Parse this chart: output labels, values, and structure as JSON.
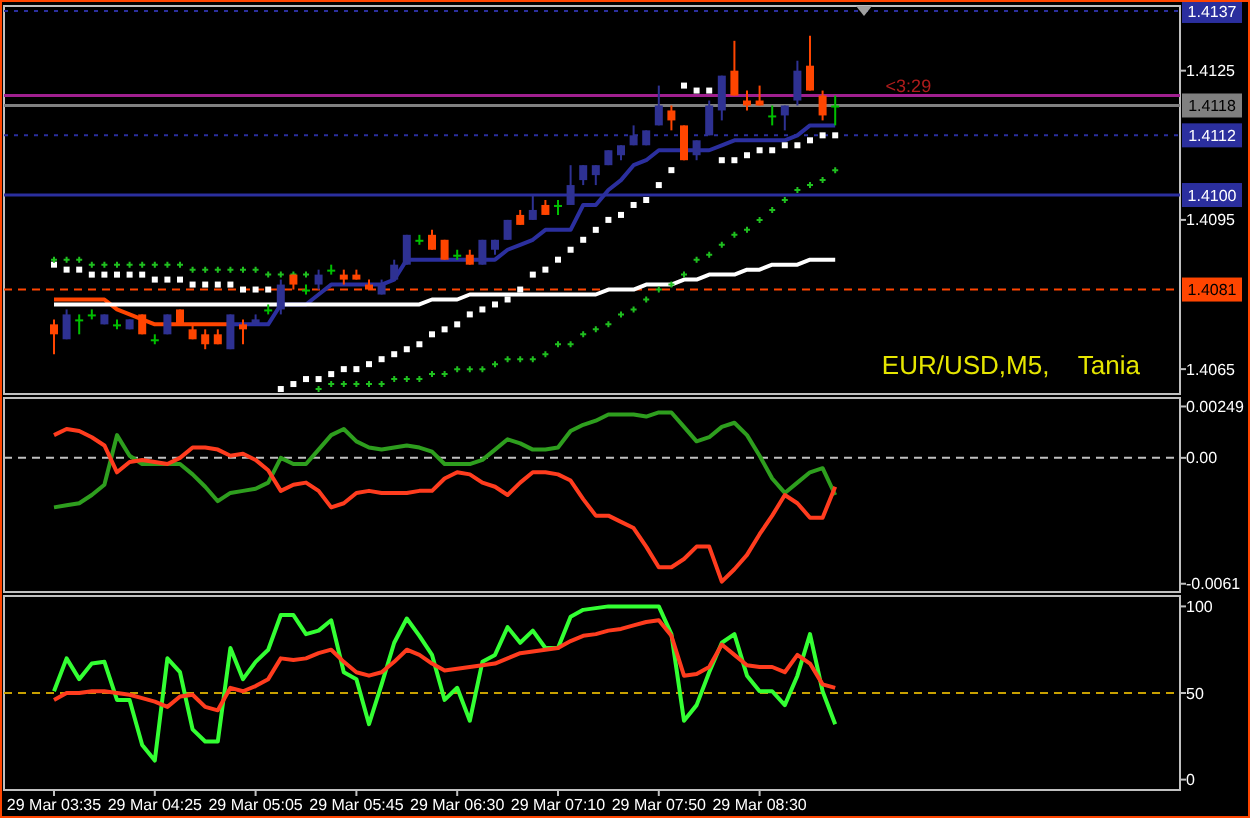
{
  "chart_data": [
    {
      "type": "candlestick",
      "title": "EUR/USD,M5,    Tania",
      "tick_labels": "y",
      "categories": [
        null,
        null,
        null,
        null,
        null,
        null,
        null,
        null,
        null,
        null,
        null,
        null,
        null,
        null,
        null,
        null,
        null,
        null,
        null,
        null,
        null,
        null,
        null,
        null,
        null,
        null,
        null,
        null,
        null,
        null,
        null,
        null,
        null,
        null,
        null,
        null,
        null,
        null,
        null,
        null,
        null,
        null,
        null,
        null,
        null,
        null,
        null,
        null,
        null,
        null,
        null,
        null,
        null,
        null,
        null,
        null,
        null,
        null,
        null,
        null,
        null,
        null,
        null
      ],
      "ohlc": [
        [
          1.4074,
          1.4075,
          1.4068,
          1.4072
        ],
        [
          1.4071,
          1.4077,
          1.4071,
          1.4076
        ],
        [
          1.4075,
          1.4076,
          1.4072,
          1.4075
        ],
        [
          1.4076,
          1.4077,
          1.4075,
          1.4076
        ],
        [
          1.4074,
          1.4076,
          1.4074,
          1.4076
        ],
        [
          1.4074,
          1.4075,
          1.4073,
          1.4074
        ],
        [
          1.4073,
          1.4075,
          1.4073,
          1.4075
        ],
        [
          1.4076,
          1.4076,
          1.4072,
          1.4072
        ],
        [
          1.4071,
          1.4072,
          1.407,
          1.4071
        ],
        [
          1.4072,
          1.4076,
          1.4072,
          1.4076
        ],
        [
          1.4077,
          1.4077,
          1.4074,
          1.4074
        ],
        [
          1.4073,
          1.4074,
          1.4071,
          1.4071
        ],
        [
          1.4072,
          1.4073,
          1.4069,
          1.407
        ],
        [
          1.4072,
          1.4073,
          1.407,
          1.407
        ],
        [
          1.4069,
          1.4076,
          1.4069,
          1.4076
        ],
        [
          1.4074,
          1.4075,
          1.407,
          1.4073
        ],
        [
          1.4074,
          1.4076,
          1.4074,
          1.4075
        ],
        [
          1.4077,
          1.4078,
          1.4076,
          1.4077
        ],
        [
          1.4077,
          1.4083,
          1.4076,
          1.4082
        ],
        [
          1.4084,
          1.4084,
          1.4081,
          1.4082
        ],
        [
          1.4081,
          1.4082,
          1.408,
          1.4081
        ],
        [
          1.4082,
          1.4085,
          1.4081,
          1.4084
        ],
        [
          1.4085,
          1.4086,
          1.4084,
          1.4085
        ],
        [
          1.4084,
          1.4085,
          1.4082,
          1.4083
        ],
        [
          1.4084,
          1.4085,
          1.4083,
          1.4083
        ],
        [
          1.4082,
          1.4083,
          1.4081,
          1.4081
        ],
        [
          1.408,
          1.4083,
          1.408,
          1.4082
        ],
        [
          1.4083,
          1.4087,
          1.4083,
          1.4086
        ],
        [
          1.4086,
          1.4092,
          1.4086,
          1.4092
        ],
        [
          1.4091,
          1.4092,
          1.409,
          1.4091
        ],
        [
          1.4092,
          1.4093,
          1.4089,
          1.4089
        ],
        [
          1.4091,
          1.4091,
          1.4087,
          1.4087
        ],
        [
          1.4088,
          1.4089,
          1.4087,
          1.4088
        ],
        [
          1.4088,
          1.4089,
          1.4086,
          1.4086
        ],
        [
          1.4086,
          1.4091,
          1.4086,
          1.4091
        ],
        [
          1.4089,
          1.4091,
          1.4088,
          1.4091
        ],
        [
          1.4091,
          1.4095,
          1.4091,
          1.4095
        ],
        [
          1.4096,
          1.4097,
          1.4094,
          1.4094
        ],
        [
          1.4095,
          1.41,
          1.4095,
          1.4097
        ],
        [
          1.4098,
          1.4099,
          1.4096,
          1.4096
        ],
        [
          1.4098,
          1.4099,
          1.4096,
          1.4098
        ],
        [
          1.4098,
          1.4106,
          1.4098,
          1.4102
        ],
        [
          1.4103,
          1.4106,
          1.4102,
          1.4106
        ],
        [
          1.4104,
          1.4106,
          1.4102,
          1.4106
        ],
        [
          1.4106,
          1.4109,
          1.4106,
          1.4109
        ],
        [
          1.4108,
          1.411,
          1.4107,
          1.411
        ],
        [
          1.411,
          1.4114,
          1.411,
          1.4112
        ],
        [
          1.411,
          1.4113,
          1.411,
          1.4113
        ],
        [
          1.4114,
          1.4122,
          1.4114,
          1.4118
        ],
        [
          1.4117,
          1.4118,
          1.4113,
          1.4115
        ],
        [
          1.4114,
          1.4114,
          1.4107,
          1.4107
        ],
        [
          1.4108,
          1.4111,
          1.4107,
          1.4111
        ],
        [
          1.4112,
          1.4119,
          1.4112,
          1.4118
        ],
        [
          1.4117,
          1.4124,
          1.4115,
          1.4124
        ],
        [
          1.4125,
          1.4131,
          1.412,
          1.412
        ],
        [
          1.4119,
          1.4121,
          1.4117,
          1.4118
        ],
        [
          1.4119,
          1.4122,
          1.4118,
          1.4118
        ],
        [
          1.4116,
          1.4118,
          1.4114,
          1.4116
        ],
        [
          1.4116,
          1.4118,
          1.4113,
          1.4118
        ],
        [
          1.4119,
          1.4127,
          1.4118,
          1.4125
        ],
        [
          1.4126,
          1.4132,
          1.4121,
          1.4121
        ],
        [
          1.412,
          1.4121,
          1.4115,
          1.4116
        ],
        [
          1.4118,
          1.412,
          1.4114,
          1.4118
        ]
      ],
      "colors": [
        "#ff4500",
        "#2e3192",
        "#00c000",
        "#00c000",
        "#2e3192",
        "#00c000",
        "#2e3192",
        "#ff4500",
        "#00c000",
        "#2e3192",
        "#ff4500",
        "#ff4500",
        "#ff4500",
        "#ff4500",
        "#2e3192",
        "#ff4500",
        "#2e3192",
        "#00c000",
        "#2e3192",
        "#ff4500",
        "#00c000",
        "#2e3192",
        "#00c000",
        "#ff4500",
        "#ff4500",
        "#ff4500",
        "#2e3192",
        "#2e3192",
        "#2e3192",
        "#00c000",
        "#ff4500",
        "#ff4500",
        "#00c000",
        "#ff4500",
        "#2e3192",
        "#2e3192",
        "#2e3192",
        "#ff4500",
        "#2e3192",
        "#ff4500",
        "#00c000",
        "#2e3192",
        "#2e3192",
        "#2e3192",
        "#2e3192",
        "#2e3192",
        "#2e3192",
        "#2e3192",
        "#2e3192",
        "#ff4500",
        "#ff4500",
        "#2e3192",
        "#2e3192",
        "#2e3192",
        "#ff4500",
        "#ff4500",
        "#ff4500",
        "#00c000",
        "#2e3192",
        "#2e3192",
        "#ff4500",
        "#ff4500",
        "#00c000"
      ],
      "series": [
        {
          "type": "line",
          "color": "#ff4500",
          "values": [
            1.4079,
            1.4079,
            1.4079,
            1.4079,
            1.4079,
            1.4077,
            1.4076,
            1.4075,
            1.4074,
            1.4074,
            1.4074,
            1.4074,
            1.4074,
            1.4074,
            1.4074,
            null,
            null,
            null,
            null,
            null,
            null,
            null,
            null,
            null,
            null,
            null,
            null,
            null,
            null,
            null,
            null,
            null,
            null,
            null,
            null,
            null,
            null,
            null,
            null,
            null,
            null,
            null,
            null,
            null,
            null,
            null,
            null,
            null,
            null,
            null,
            null,
            null,
            null,
            null,
            null,
            null,
            null,
            null,
            null,
            null,
            null,
            null,
            null
          ]
        },
        {
          "type": "line",
          "color": "#2b2f9e",
          "values": [
            null,
            null,
            null,
            null,
            null,
            null,
            null,
            null,
            null,
            null,
            null,
            null,
            null,
            null,
            1.4074,
            1.4074,
            1.4074,
            1.4074,
            1.4078,
            1.4078,
            1.4078,
            1.408,
            1.4082,
            1.4082,
            1.4082,
            1.4082,
            1.4082,
            1.4083,
            1.4087,
            1.4087,
            1.4087,
            1.4087,
            1.4087,
            1.4087,
            1.4087,
            1.4087,
            1.4089,
            1.409,
            1.4091,
            1.4093,
            1.4093,
            1.4093,
            1.4098,
            1.4098,
            1.4101,
            1.4103,
            1.4106,
            1.4107,
            1.4109,
            1.4109,
            1.4109,
            1.4109,
            1.4109,
            1.411,
            1.4111,
            1.4111,
            1.4111,
            1.4111,
            1.4111,
            1.4112,
            1.4114,
            1.4114,
            1.4114
          ]
        },
        {
          "type": "line",
          "color": "#ffffff",
          "values": [
            1.4078,
            1.4078,
            1.4078,
            1.4078,
            1.4078,
            1.4078,
            1.4078,
            1.4078,
            1.4078,
            1.4078,
            1.4078,
            1.4078,
            1.4078,
            1.4078,
            1.4078,
            1.4078,
            1.4078,
            1.4078,
            1.4078,
            1.4078,
            1.4078,
            1.4078,
            1.4078,
            1.4078,
            1.4078,
            1.4078,
            1.4078,
            1.4078,
            1.4078,
            1.4078,
            1.4079,
            1.4079,
            1.4079,
            1.408,
            1.408,
            1.408,
            1.408,
            1.408,
            1.408,
            1.408,
            1.408,
            1.408,
            1.408,
            1.408,
            1.4081,
            1.4081,
            1.4081,
            1.4082,
            1.4082,
            1.4082,
            1.4083,
            1.4083,
            1.4084,
            1.4084,
            1.4084,
            1.4085,
            1.4085,
            1.4086,
            1.4086,
            1.4086,
            1.4087,
            1.4087,
            1.4087
          ]
        },
        {
          "type": "scatter",
          "marker": "square",
          "color": "#ffffff",
          "values": [
            1.4086,
            1.4085,
            1.4085,
            1.4084,
            1.4084,
            1.4084,
            1.4084,
            1.4084,
            1.4083,
            1.4083,
            1.4083,
            1.4082,
            1.4082,
            1.4082,
            1.4082,
            1.4081,
            1.4081,
            1.4081,
            1.4061,
            1.4062,
            1.4063,
            1.4063,
            1.4064,
            1.4065,
            1.4065,
            1.4066,
            1.4067,
            1.4068,
            1.4069,
            1.407,
            1.4072,
            1.4073,
            1.4074,
            1.4076,
            1.4077,
            1.4078,
            1.4079,
            1.4081,
            1.4084,
            1.4085,
            1.4087,
            1.4089,
            1.4091,
            1.4093,
            1.4095,
            1.4096,
            1.4098,
            1.4099,
            1.4102,
            1.4105,
            1.4122,
            1.4121,
            1.4121,
            1.4107,
            1.4107,
            1.4108,
            1.4109,
            1.4109,
            1.411,
            1.411,
            1.4111,
            1.4112,
            1.4112
          ]
        },
        {
          "type": "scatter",
          "marker": "cross",
          "color": "#1fbf1f",
          "values": [
            1.4087,
            1.4087,
            1.4087,
            1.4086,
            1.4086,
            1.4086,
            1.4086,
            1.4086,
            1.4086,
            1.4086,
            1.4086,
            1.4085,
            1.4085,
            1.4085,
            1.4085,
            1.4085,
            1.4085,
            1.4084,
            1.4084,
            1.4084,
            1.4084,
            1.4061,
            1.4062,
            1.4062,
            1.4062,
            1.4062,
            1.4062,
            1.4063,
            1.4063,
            1.4063,
            1.4064,
            1.4064,
            1.4065,
            1.4065,
            1.4065,
            1.4066,
            1.4067,
            1.4067,
            1.4067,
            1.4068,
            1.407,
            1.407,
            1.4072,
            1.4073,
            1.4074,
            1.4076,
            1.4077,
            1.4079,
            1.4081,
            1.4082,
            1.4084,
            1.4087,
            1.4088,
            1.409,
            1.4092,
            1.4093,
            1.4095,
            1.4097,
            1.4099,
            1.4101,
            1.4102,
            1.4103,
            1.4105
          ]
        }
      ],
      "ylim": [
        1.406,
        1.4138
      ],
      "yticks": [
        1.4125,
        1.4095,
        1.4065
      ],
      "ref_lines": [
        {
          "axis": "y",
          "value": 1.4137,
          "label": "1.4137",
          "color": "#2b2f9e",
          "line_style": "dotted"
        },
        {
          "axis": "y",
          "value": 1.412,
          "color": "#a0208f",
          "line_style": "solid"
        },
        {
          "axis": "y",
          "value": 1.4118,
          "label": "1.4118",
          "color": "#808080",
          "line_style": "solid"
        },
        {
          "axis": "y",
          "value": 1.4112,
          "label": "1.4112",
          "color": "#2b2f9e",
          "line_style": "dotted"
        },
        {
          "axis": "y",
          "value": 1.41,
          "label": "1.4100",
          "color": "#2b2f9e",
          "line_style": "solid"
        },
        {
          "axis": "y",
          "value": 1.4081,
          "label": "1.4081",
          "color": "#ff4500",
          "line_style": "dashed"
        }
      ],
      "annotations": [
        {
          "text": "<3:29",
          "y": 1.412
        }
      ]
    },
    {
      "type": "line",
      "tick_labels": "y",
      "categories": [
        null,
        null,
        null,
        null,
        null,
        null,
        null,
        null,
        null,
        null,
        null,
        null,
        null,
        null,
        null,
        null,
        null,
        null,
        null,
        null,
        null,
        null,
        null,
        null,
        null,
        null,
        null,
        null,
        null,
        null,
        null,
        null,
        null,
        null,
        null,
        null,
        null,
        null,
        null,
        null,
        null,
        null,
        null,
        null,
        null,
        null,
        null,
        null,
        null,
        null,
        null,
        null,
        null,
        null,
        null,
        null,
        null,
        null,
        null,
        null,
        null,
        null,
        null
      ],
      "series": [
        {
          "color": "#2e9e1e",
          "values": [
            -0.0024,
            -0.0023,
            -0.0022,
            -0.0018,
            -0.0013,
            0.0011,
            0.0001,
            -0.0003,
            -0.0003,
            -0.0003,
            -0.0003,
            -0.0008,
            -0.0014,
            -0.0021,
            -0.0017,
            -0.0016,
            -0.0015,
            -0.0012,
            0,
            -0.0003,
            -0.0003,
            0.0004,
            0.0011,
            0.0014,
            0.0008,
            0.0005,
            0.0004,
            0.0005,
            0.0006,
            0.0005,
            0.0003,
            -0.0003,
            -0.0003,
            -0.0003,
            -0.0001,
            0.0004,
            0.0009,
            0.0007,
            0.0004,
            0.0004,
            0.0005,
            0.0013,
            0.0016,
            0.0018,
            0.0021,
            0.0021,
            0.0021,
            0.002,
            0.0022,
            0.0022,
            0.0015,
            0.0008,
            0.001,
            0.0015,
            0.0017,
            0.0011,
            0.0001,
            -0.001,
            -0.0017,
            -0.0012,
            -0.0007,
            -0.0005,
            -0.0018
          ]
        },
        {
          "color": "#ff3c1e",
          "values": [
            0.0011,
            0.0014,
            0.0013,
            0.001,
            0.0006,
            -0.0007,
            -0.0002,
            -0.0001,
            -0.0002,
            -0.0003,
            0,
            0.0005,
            0.0005,
            0.0004,
            0.0001,
            0.0002,
            -0.0001,
            -0.0006,
            -0.0016,
            -0.0013,
            -0.0012,
            -0.0016,
            -0.0024,
            -0.0022,
            -0.0017,
            -0.0016,
            -0.0017,
            -0.0017,
            -0.0017,
            -0.0016,
            -0.0016,
            -0.001,
            -0.0007,
            -0.0008,
            -0.0012,
            -0.0014,
            -0.0018,
            -0.0012,
            -0.0007,
            -0.0007,
            -0.0008,
            -0.0011,
            -0.002,
            -0.0028,
            -0.0028,
            -0.0031,
            -0.0034,
            -0.0043,
            -0.0053,
            -0.0053,
            -0.0049,
            -0.0043,
            -0.0043,
            -0.006,
            -0.0054,
            -0.0047,
            -0.0037,
            -0.0028,
            -0.0018,
            -0.0022,
            -0.0029,
            -0.0029,
            -0.0014
          ]
        }
      ],
      "ylim": [
        -0.0065,
        0.0029
      ],
      "yticks": [
        0.00249,
        {
          "value": 0,
          "label": "0.00"
        },
        -0.0061
      ],
      "ref_lines": [
        {
          "axis": "y",
          "value": 0,
          "color": "#c0c0c0",
          "line_style": "dashed"
        }
      ]
    },
    {
      "type": "line",
      "categories": [
        "29 Mar 03:35",
        null,
        null,
        null,
        null,
        null,
        null,
        null,
        "29 Mar 04:25",
        null,
        null,
        null,
        null,
        null,
        null,
        null,
        "29 Mar 05:05",
        null,
        null,
        null,
        null,
        null,
        null,
        null,
        "29 Mar 05:45",
        null,
        null,
        null,
        null,
        null,
        null,
        null,
        "29 Mar 06:30",
        null,
        null,
        null,
        null,
        null,
        null,
        null,
        "29 Mar 07:10",
        null,
        null,
        null,
        null,
        null,
        null,
        null,
        "29 Mar 07:50",
        null,
        null,
        null,
        null,
        null,
        null,
        null,
        "29 Mar 08:30",
        null,
        null,
        null,
        null,
        null,
        null
      ],
      "series": [
        {
          "color": "#33ff33",
          "values": [
            51,
            70,
            58,
            67,
            68,
            46,
            46,
            20,
            11,
            70,
            62,
            29,
            22,
            22,
            76,
            58,
            68,
            75,
            95,
            95,
            84,
            86,
            92,
            62,
            58,
            32,
            55,
            79,
            93,
            83,
            72,
            46,
            53,
            34,
            68,
            72,
            88,
            79,
            86,
            76,
            76,
            94,
            98,
            99,
            100,
            100,
            100,
            100,
            100,
            84,
            34,
            43,
            62,
            79,
            84,
            60,
            51,
            51,
            43,
            60,
            84,
            51,
            32
          ]
        },
        {
          "color": "#ff3c1e",
          "values": [
            46,
            50,
            50,
            51,
            51,
            50,
            49,
            47,
            45,
            42,
            48,
            49,
            42,
            40,
            53,
            51,
            54,
            58,
            70,
            69,
            70,
            73,
            75,
            68,
            62,
            60,
            62,
            68,
            75,
            72,
            67,
            63,
            64,
            65,
            66,
            67,
            70,
            73,
            74,
            75,
            76,
            80,
            83,
            84,
            86,
            87,
            89,
            91,
            92,
            83,
            60,
            61,
            65,
            78,
            72,
            66,
            65,
            65,
            62,
            72,
            67,
            55,
            53
          ]
        }
      ],
      "ylim": [
        -6,
        106
      ],
      "yticks": [
        0,
        50,
        100
      ],
      "ref_lines": [
        {
          "axis": "y",
          "value": 50,
          "color": "#c8a000",
          "line_style": "dashed"
        }
      ]
    }
  ]
}
